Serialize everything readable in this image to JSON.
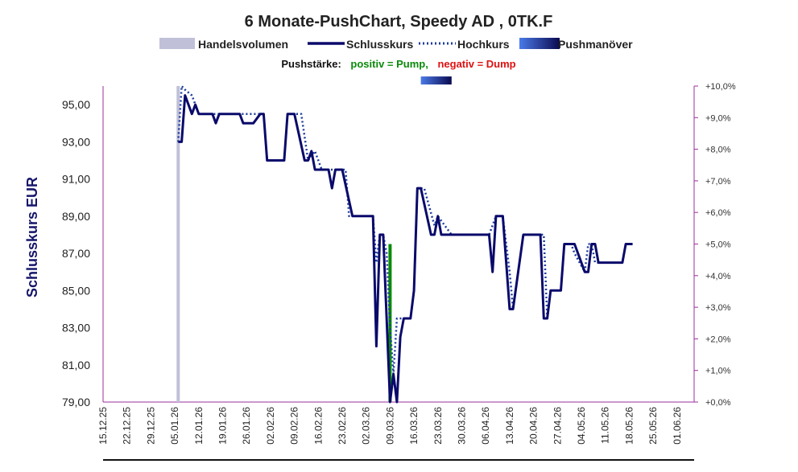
{
  "chart_data": {
    "type": "line",
    "title": "6 Monate-PushChart, Speedy AD , 0TK.F",
    "legend": {
      "position": "top",
      "entries": [
        {
          "name": "Handelsvolumen",
          "color": "#c0c0d8",
          "style": "bar"
        },
        {
          "name": "Schlusskurs",
          "color": "#0a0a6b",
          "style": "line"
        },
        {
          "name": "Hochkurs",
          "color": "#1a3a9a",
          "style": "dotted"
        },
        {
          "name": "Pushmanöver",
          "color": "#3a6ae0",
          "style": "gradient"
        }
      ]
    },
    "push_legend": {
      "prefix": "Pushstärke:",
      "positive": "positiv = Pump,",
      "negative": "negativ = Dump",
      "positive_color": "#0a8a0a",
      "negative_color": "#e01010"
    },
    "ylabel": "Schlusskurs EUR",
    "ylim": [
      79,
      96
    ],
    "yticks": [
      "95,00",
      "93,00",
      "91,00",
      "89,00",
      "87,00",
      "85,00",
      "83,00",
      "81,00",
      "79,00"
    ],
    "ytick_values": [
      95,
      93,
      91,
      89,
      87,
      85,
      83,
      81,
      79
    ],
    "y2lim": [
      0,
      10
    ],
    "y2ticks": [
      "+10,0%",
      "+9,0%",
      "+8,0%",
      "+7,0%",
      "+6,0%",
      "+5,0%",
      "+4,0%",
      "+3,0%",
      "+2,0%",
      "+1,0%",
      "+0,0%"
    ],
    "y2tick_values": [
      10,
      9,
      8,
      7,
      6,
      5,
      4,
      3,
      2,
      1,
      0
    ],
    "x_start": "15.12.25",
    "x_end": "06.06.26",
    "xticks": [
      "15.12.25",
      "22.12.25",
      "29.12.25",
      "05.01.26",
      "12.01.26",
      "19.01.26",
      "26.01.26",
      "02.02.26",
      "09.02.26",
      "16.02.26",
      "23.02.26",
      "02.03.26",
      "09.03.26",
      "16.03.26",
      "23.03.26",
      "30.03.26",
      "06.04.26",
      "13.04.26",
      "20.04.26",
      "27.04.26",
      "04.05.26",
      "11.05.26",
      "18.05.26",
      "25.05.26",
      "01.06.26"
    ],
    "grid": false,
    "series": [
      {
        "name": "Schlusskurs",
        "color": "#0a0a6b",
        "points": [
          [
            "06.01.26",
            93.0
          ],
          [
            "07.01.26",
            93.0
          ],
          [
            "08.01.26",
            95.5
          ],
          [
            "10.01.26",
            94.5
          ],
          [
            "11.01.26",
            95.0
          ],
          [
            "12.01.26",
            94.5
          ],
          [
            "16.01.26",
            94.5
          ],
          [
            "17.01.26",
            94.0
          ],
          [
            "18.01.26",
            94.5
          ],
          [
            "24.01.26",
            94.5
          ],
          [
            "25.01.26",
            94.0
          ],
          [
            "28.01.26",
            94.0
          ],
          [
            "30.01.26",
            94.5
          ],
          [
            "31.01.26",
            94.5
          ],
          [
            "01.02.26",
            92.0
          ],
          [
            "06.02.26",
            92.0
          ],
          [
            "07.02.26",
            94.5
          ],
          [
            "09.02.26",
            94.5
          ],
          [
            "12.02.26",
            92.0
          ],
          [
            "13.02.26",
            92.0
          ],
          [
            "14.02.26",
            92.5
          ],
          [
            "15.02.26",
            91.5
          ],
          [
            "19.02.26",
            91.5
          ],
          [
            "20.02.26",
            90.5
          ],
          [
            "21.02.26",
            91.5
          ],
          [
            "23.02.26",
            91.5
          ],
          [
            "26.02.26",
            89.0
          ],
          [
            "04.03.26",
            89.0
          ],
          [
            "05.03.26",
            82.0
          ],
          [
            "06.03.26",
            88.0
          ],
          [
            "07.03.26",
            88.0
          ],
          [
            "09.03.26",
            79.0
          ],
          [
            "10.03.26",
            80.5
          ],
          [
            "11.03.26",
            79.0
          ],
          [
            "12.03.26",
            82.5
          ],
          [
            "13.03.26",
            83.5
          ],
          [
            "15.03.26",
            83.5
          ],
          [
            "16.03.26",
            85.0
          ],
          [
            "17.03.26",
            90.5
          ],
          [
            "18.03.26",
            90.5
          ],
          [
            "21.03.26",
            88.0
          ],
          [
            "22.03.26",
            88.0
          ],
          [
            "23.03.26",
            89.0
          ],
          [
            "24.03.26",
            88.0
          ],
          [
            "07.04.26",
            88.0
          ],
          [
            "08.04.26",
            86.0
          ],
          [
            "09.04.26",
            89.0
          ],
          [
            "11.04.26",
            89.0
          ],
          [
            "13.04.26",
            84.0
          ],
          [
            "14.04.26",
            84.0
          ],
          [
            "17.04.26",
            88.0
          ],
          [
            "22.04.26",
            88.0
          ],
          [
            "23.04.26",
            83.5
          ],
          [
            "24.04.26",
            83.5
          ],
          [
            "25.04.26",
            85.0
          ],
          [
            "28.04.26",
            85.0
          ],
          [
            "29.04.26",
            87.5
          ],
          [
            "02.05.26",
            87.5
          ],
          [
            "05.05.26",
            86.0
          ],
          [
            "06.05.26",
            86.0
          ],
          [
            "07.05.26",
            87.5
          ],
          [
            "08.05.26",
            87.5
          ],
          [
            "09.05.26",
            86.5
          ],
          [
            "16.05.26",
            86.5
          ],
          [
            "17.05.26",
            87.5
          ],
          [
            "19.05.26",
            87.5
          ]
        ]
      },
      {
        "name": "Hochkurs",
        "color": "#1a3a9a",
        "points": [
          [
            "06.01.26",
            93.0
          ],
          [
            "07.01.26",
            96.0
          ],
          [
            "08.01.26",
            95.8
          ],
          [
            "10.01.26",
            95.5
          ],
          [
            "11.01.26",
            95.0
          ],
          [
            "12.01.26",
            94.5
          ],
          [
            "31.01.26",
            94.5
          ],
          [
            "01.02.26",
            92.0
          ],
          [
            "06.02.26",
            92.0
          ],
          [
            "07.02.26",
            94.5
          ],
          [
            "11.02.26",
            94.5
          ],
          [
            "13.02.26",
            92.0
          ],
          [
            "15.02.26",
            92.5
          ],
          [
            "17.02.26",
            91.5
          ],
          [
            "24.02.26",
            91.5
          ],
          [
            "25.02.26",
            89.0
          ],
          [
            "04.03.26",
            89.0
          ],
          [
            "05.03.26",
            86.5
          ],
          [
            "06.03.26",
            88.0
          ],
          [
            "07.03.26",
            88.0
          ],
          [
            "08.03.26",
            87.0
          ],
          [
            "09.03.26",
            83.0
          ],
          [
            "10.03.26",
            80.5
          ],
          [
            "11.03.26",
            83.5
          ],
          [
            "15.03.26",
            83.5
          ],
          [
            "16.03.26",
            85.0
          ],
          [
            "17.03.26",
            90.5
          ],
          [
            "19.03.26",
            90.5
          ],
          [
            "22.03.26",
            88.5
          ],
          [
            "23.03.26",
            89.0
          ],
          [
            "25.03.26",
            88.5
          ],
          [
            "27.03.26",
            88.0
          ],
          [
            "07.04.26",
            88.0
          ],
          [
            "09.04.26",
            89.0
          ],
          [
            "11.04.26",
            89.0
          ],
          [
            "13.04.26",
            86.0
          ],
          [
            "14.04.26",
            84.0
          ],
          [
            "17.04.26",
            88.0
          ],
          [
            "23.04.26",
            88.0
          ],
          [
            "24.04.26",
            83.5
          ],
          [
            "25.04.26",
            85.0
          ],
          [
            "28.04.26",
            85.0
          ],
          [
            "29.04.26",
            87.5
          ],
          [
            "01.05.26",
            87.5
          ],
          [
            "02.05.26",
            87.0
          ],
          [
            "05.05.26",
            86.0
          ],
          [
            "06.05.26",
            87.5
          ],
          [
            "07.05.26",
            87.5
          ],
          [
            "08.05.26",
            86.5
          ],
          [
            "16.05.26",
            86.5
          ],
          [
            "17.05.26",
            87.5
          ],
          [
            "19.05.26",
            87.5
          ]
        ]
      }
    ],
    "volume_bars": [
      {
        "x": "06.01.26",
        "value": 10.0
      }
    ],
    "push_bars": [
      {
        "x": "09.03.26",
        "value": 5.0,
        "color": "#0a8a0a"
      }
    ],
    "push_maneuver": {
      "start": "18.03.26",
      "end": "27.03.26",
      "y": 96.3
    }
  }
}
